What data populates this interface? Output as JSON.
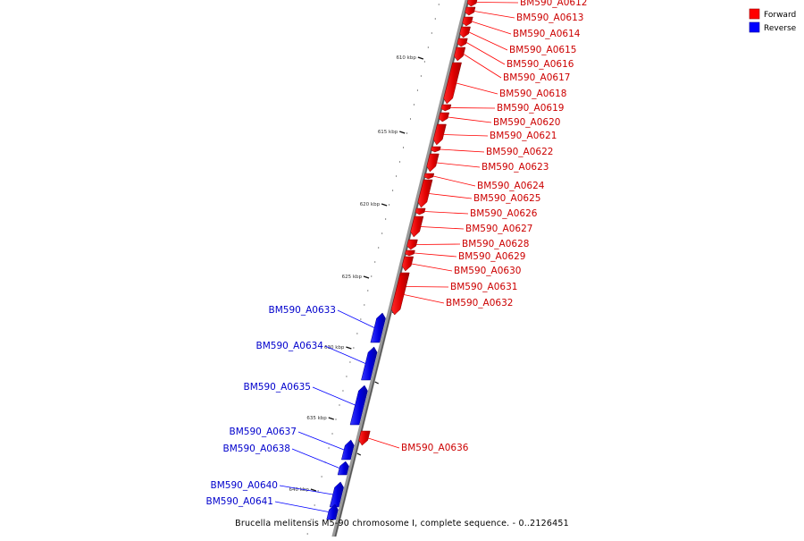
{
  "title": "Brucella melitensis M5-90 chromosome I, complete sequence. - 0..2126451",
  "legend": [
    {
      "label": "Forward",
      "color": "#ff0000"
    },
    {
      "label": "Reverse",
      "color": "#0000ff"
    }
  ],
  "scale_unit": "kbp",
  "scale_ticks": [
    {
      "kbp": 610,
      "label": "610 kbp"
    },
    {
      "kbp": 615,
      "label": "615 kbp"
    },
    {
      "kbp": 620,
      "label": "620 kbp"
    },
    {
      "kbp": 625,
      "label": "625 kbp"
    },
    {
      "kbp": 630,
      "label": "630 kbp"
    },
    {
      "kbp": 635,
      "label": "635 kbp"
    },
    {
      "kbp": 640,
      "label": "640 kbp"
    }
  ],
  "genes": [
    {
      "name": "BM590_A0612",
      "strand": "forward"
    },
    {
      "name": "BM590_A0613",
      "strand": "forward"
    },
    {
      "name": "BM590_A0614",
      "strand": "forward"
    },
    {
      "name": "BM590_A0615",
      "strand": "forward"
    },
    {
      "name": "BM590_A0616",
      "strand": "forward"
    },
    {
      "name": "BM590_A0617",
      "strand": "forward"
    },
    {
      "name": "BM590_A0618",
      "strand": "forward"
    },
    {
      "name": "BM590_A0619",
      "strand": "forward"
    },
    {
      "name": "BM590_A0620",
      "strand": "forward"
    },
    {
      "name": "BM590_A0621",
      "strand": "forward"
    },
    {
      "name": "BM590_A0622",
      "strand": "forward"
    },
    {
      "name": "BM590_A0623",
      "strand": "forward"
    },
    {
      "name": "BM590_A0624",
      "strand": "forward"
    },
    {
      "name": "BM590_A0625",
      "strand": "forward"
    },
    {
      "name": "BM590_A0626",
      "strand": "forward"
    },
    {
      "name": "BM590_A0627",
      "strand": "forward"
    },
    {
      "name": "BM590_A0628",
      "strand": "forward"
    },
    {
      "name": "BM590_A0629",
      "strand": "forward"
    },
    {
      "name": "BM590_A0630",
      "strand": "forward"
    },
    {
      "name": "BM590_A0631",
      "strand": "forward"
    },
    {
      "name": "BM590_A0632",
      "strand": "forward"
    },
    {
      "name": "BM590_A0633",
      "strand": "reverse"
    },
    {
      "name": "BM590_A0634",
      "strand": "reverse"
    },
    {
      "name": "BM590_A0635",
      "strand": "reverse"
    },
    {
      "name": "BM590_A0636",
      "strand": "forward"
    },
    {
      "name": "BM590_A0637",
      "strand": "reverse"
    },
    {
      "name": "BM590_A0638",
      "strand": "reverse"
    },
    {
      "name": "BM590_A0640",
      "strand": "reverse"
    },
    {
      "name": "BM590_A0641",
      "strand": "reverse"
    }
  ]
}
